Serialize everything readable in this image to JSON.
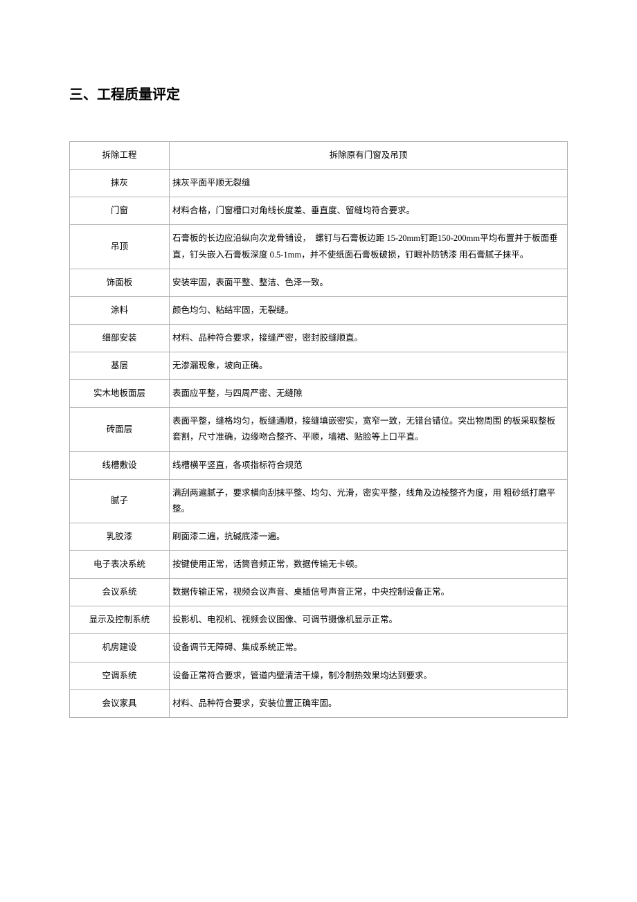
{
  "heading": "三、工程质量评定",
  "table": {
    "header": {
      "col1": "拆除工程",
      "col2": "拆除原有门窗及吊顶"
    },
    "rows": [
      {
        "label": "抹灰",
        "desc": "抹灰平面平顺无裂缝"
      },
      {
        "label": "门窗",
        "desc": "材料合格，门窗槽口对角线长度差、垂直度、留缝均符合要求。"
      },
      {
        "label": "吊顶",
        "desc": "石膏板的长边应沿纵向次龙骨铺设，　螺钉与石膏板边距 15-20mm钉距150-200mm平均布置并于板面垂直，钉头嵌入石膏板深度 0.5-1mm，并不使纸面石膏板破损，钉眼补防锈漆 用石膏腻子抹平。"
      },
      {
        "label": "饰面板",
        "desc": "安装牢固，表面平整、整洁、色泽一致。"
      },
      {
        "label": "涂料",
        "desc": "颜色均匀、粘结牢固，无裂缝。"
      },
      {
        "label": "细部安装",
        "desc": "材料、品种符合要求，接缝严密，密封胶缝顺直。"
      },
      {
        "label": "基层",
        "desc": "无渗漏现象，坡向正确。"
      },
      {
        "label": "实木地板面层",
        "desc": "表面应平整，与四周严密、无缝隙"
      },
      {
        "label": "砖面层",
        "desc": "表面平整，缝格均匀，板缝通顺，接缝填嵌密实，宽窄一致，无错台错位。突出物周围 的板采取整板套割，尺寸准确，边缘吻合整齐、平顺，墙裙、贴脸等上口平直。"
      },
      {
        "label": "线槽敷设",
        "desc": "线槽横平竖直，各项指标符合规范"
      },
      {
        "label": "腻子",
        "desc": "满刮两遍腻子，要求横向刮抹平整、均匀、光滑，密实平整，线角及边棱整齐为度，用 粗砂纸打磨平整。"
      },
      {
        "label": "乳胶漆",
        "desc": "刷面漆二遍，抗碱底漆一遍。"
      },
      {
        "label": "电子表决系统",
        "desc": "按键使用正常，话筒音频正常，数据传输无卡顿。"
      },
      {
        "label": "会议系统",
        "desc": "数据传输正常，视频会议声音、桌插信号声音正常，中央控制设备正常。"
      },
      {
        "label": "显示及控制系统",
        "desc": "投影机、电视机、视频会议图像、可调节摄像机显示正常。"
      },
      {
        "label": "机房建设",
        "desc": "设备调节无障碍、集成系统正常。"
      },
      {
        "label": "空调系统",
        "desc": "设备正常符合要求，管道内壁清洁干燥，制冷制热效果均达到要求。"
      },
      {
        "label": "会议家具",
        "desc": "材料、品种符合要求，安装位置正确牢固。"
      }
    ]
  }
}
